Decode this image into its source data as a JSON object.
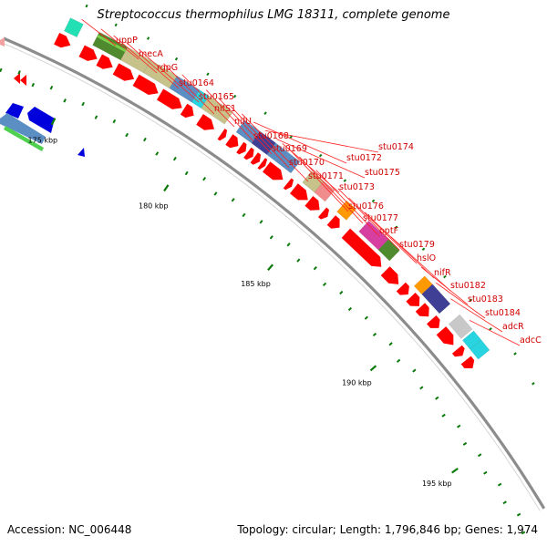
{
  "title": "Streptococcus thermophilus LMG 18311, complete genome",
  "footer": {
    "accession": "Accession: NC_006448",
    "topology": "Topology: circular; Length: 1,796,846 bp; Genes: 1,974"
  },
  "scale_labels": [
    "175 kbp",
    "180 kbp",
    "185 kbp",
    "190 kbp",
    "195 kbp"
  ],
  "gene_labels": [
    "uppP",
    "mecA",
    "rgpG",
    "stu0164",
    "stu0165",
    "nifS1",
    "nifU",
    "stu0168",
    "stu0169",
    "stu0170",
    "stu0171",
    "stu0172",
    "stu0174",
    "stu0175",
    "stu0173",
    "stu0176",
    "stu0177",
    "optF",
    "stu0179",
    "hslO",
    "nifR",
    "stu0182",
    "stu0183",
    "stu0184",
    "adcR",
    "adcC"
  ],
  "colors": {
    "cds": "#ff0000",
    "label": "#d00000",
    "backbone": "#8c8c8c",
    "tick": "#0a7a0a",
    "cog_blue": "#0000dd",
    "cog_steel": "#5b8fc4",
    "cog_olive": "#c6c28a",
    "cog_green": "#4f8a2e",
    "cog_cyan": "#27d4e0",
    "cog_navy": "#3f3f96",
    "cog_orange": "#ff9900",
    "cog_pink": "#f08c8c",
    "cog_magenta": "#d63fa0",
    "cog_grey": "#c8c8c8",
    "cog_teal": "#23e0b4"
  }
}
